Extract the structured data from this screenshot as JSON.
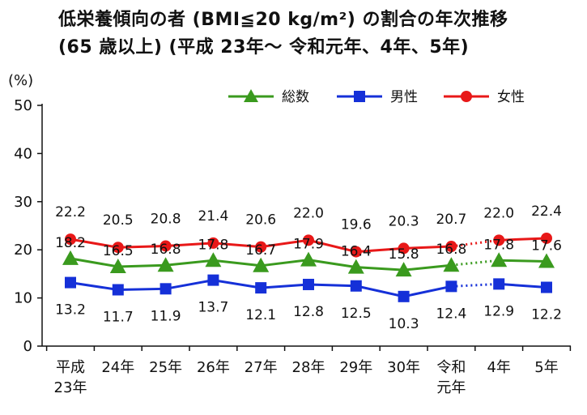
{
  "title_line1": "低栄養傾向の者 (BMI≦20 kg/m²) の割合の年次推移",
  "title_line2": "(65 歳以上) (平成 23年〜 令和元年、4年、5年)",
  "chart_data": {
    "type": "line",
    "ylabel": "(%)",
    "ylim": [
      0,
      50
    ],
    "yticks": [
      0,
      10,
      20,
      30,
      40,
      50
    ],
    "grid": false,
    "legend_position": "top-right",
    "categories": [
      [
        "平成",
        "23年"
      ],
      [
        "24年"
      ],
      [
        "25年"
      ],
      [
        "26年"
      ],
      [
        "27年"
      ],
      [
        "28年"
      ],
      [
        "29年"
      ],
      [
        "30年"
      ],
      [
        "令和",
        "元年"
      ],
      [
        "4年"
      ],
      [
        "5年"
      ]
    ],
    "series": [
      {
        "name": "総数",
        "color": "#3a9a1e",
        "marker": "triangle",
        "values": [
          18.2,
          16.5,
          16.8,
          17.8,
          16.7,
          17.9,
          16.4,
          15.8,
          16.8,
          17.8,
          17.6
        ],
        "labels": [
          "18.2",
          "16.5",
          "16.8",
          "17.8",
          "16.7",
          "17.9",
          "16.4",
          "15.8",
          "16.8",
          "17.8",
          "17.6"
        ]
      },
      {
        "name": "男性",
        "color": "#1530d8",
        "marker": "square",
        "values": [
          13.2,
          11.7,
          11.9,
          13.7,
          12.1,
          12.8,
          12.5,
          10.3,
          12.4,
          12.9,
          12.2
        ],
        "labels": [
          "13.2",
          "11.7",
          "11.9",
          "13.7",
          "12.1",
          "12.8",
          "12.5",
          "10.3",
          "12.4",
          "12.9",
          "12.2"
        ]
      },
      {
        "name": "女性",
        "color": "#e81818",
        "marker": "circle",
        "values": [
          22.2,
          20.5,
          20.8,
          21.4,
          20.6,
          22.0,
          19.6,
          20.3,
          20.7,
          22.0,
          22.4
        ],
        "labels": [
          "22.2",
          "20.5",
          "20.8",
          "21.4",
          "20.6",
          "22.0",
          "19.6",
          "20.3",
          "20.7",
          "22.0",
          "22.4"
        ]
      }
    ]
  }
}
